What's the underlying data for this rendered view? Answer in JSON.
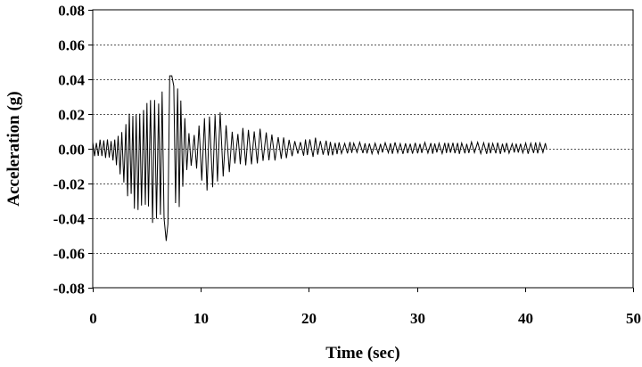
{
  "chart_data": {
    "type": "line",
    "title": "",
    "xlabel": "Time (sec)",
    "ylabel": "Acceleration (g)",
    "xlim": [
      0,
      50
    ],
    "ylim": [
      -0.08,
      0.08
    ],
    "x_ticks": [
      0,
      10,
      20,
      30,
      40,
      50
    ],
    "x_tick_labels": [
      "0",
      "10",
      "20",
      "30",
      "40",
      "50"
    ],
    "y_ticks": [
      0.08,
      0.06,
      0.04,
      0.02,
      0.0,
      -0.02,
      -0.04,
      -0.06,
      -0.08
    ],
    "y_tick_labels": [
      "0.08",
      "0.06",
      "0.04",
      "0.02",
      "0.00",
      "-0.02",
      "-0.04",
      "-0.06",
      "-0.08"
    ],
    "grid": "horizontal dotted",
    "line_color": "#000000",
    "series": [
      {
        "duration": 42,
        "peak_positive": {
          "x": 7.2,
          "y": 0.042
        },
        "peak_negative": {
          "x": 6.8,
          "y": -0.053
        },
        "envelope": {
          "x": [
            0,
            1,
            2,
            2.5,
            3,
            3.5,
            4,
            4.5,
            5,
            5.5,
            6,
            6.5,
            7,
            7.5,
            8,
            8.5,
            9,
            9.5,
            10,
            11,
            12,
            13,
            14,
            15,
            16,
            17,
            18,
            19,
            20,
            22,
            24,
            26,
            28,
            30,
            32,
            34,
            36,
            38,
            40,
            42
          ],
          "upper": [
            0.004,
            0.006,
            0.006,
            0.012,
            0.016,
            0.024,
            0.022,
            0.026,
            0.029,
            0.03,
            0.032,
            0.038,
            0.041,
            0.042,
            0.034,
            0.024,
            0.01,
            0.008,
            0.022,
            0.026,
            0.02,
            0.012,
            0.012,
            0.014,
            0.01,
            0.008,
            0.006,
            0.004,
            0.007,
            0.005,
            0.004,
            0.004,
            0.004,
            0.004,
            0.004,
            0.004,
            0.004,
            0.004,
            0.004,
            0.004
          ],
          "lower": [
            -0.004,
            -0.006,
            -0.007,
            -0.018,
            -0.028,
            -0.036,
            -0.034,
            -0.04,
            -0.043,
            -0.044,
            -0.048,
            -0.053,
            -0.05,
            -0.048,
            -0.034,
            -0.02,
            -0.012,
            -0.01,
            -0.026,
            -0.026,
            -0.02,
            -0.012,
            -0.012,
            -0.01,
            -0.008,
            -0.008,
            -0.006,
            -0.004,
            -0.005,
            -0.004,
            -0.003,
            -0.003,
            -0.003,
            -0.003,
            -0.003,
            -0.003,
            -0.003,
            -0.003,
            -0.003,
            -0.003
          ]
        }
      }
    ]
  }
}
